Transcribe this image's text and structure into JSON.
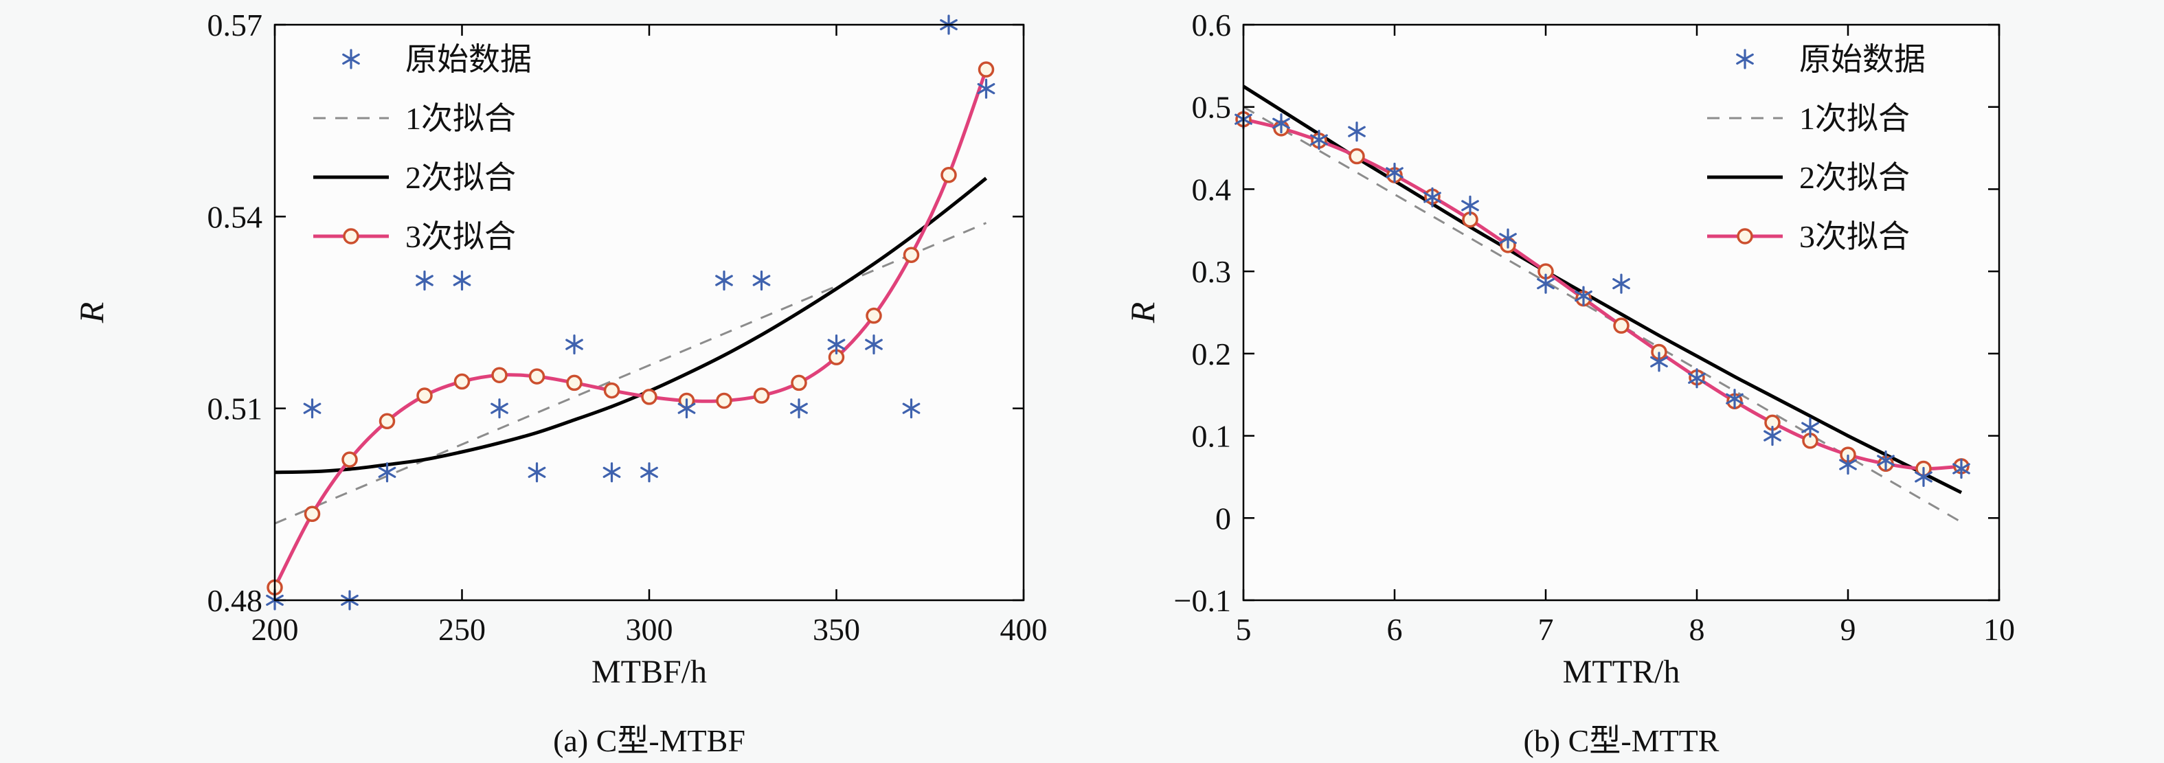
{
  "page": {
    "background": "#f7f8f8",
    "plot_fill": "#fcfcfc",
    "axis_color": "#000000",
    "text_color": "#111111"
  },
  "chart_data": [
    {
      "type": "line",
      "caption": "(a) C型-MTBF",
      "xlabel": "MTBF/h",
      "ylabel": "R",
      "xlim": [
        200,
        400
      ],
      "ylim": [
        0.48,
        0.57
      ],
      "xticks": [
        200,
        250,
        300,
        350,
        400
      ],
      "xtick_labels": [
        "200",
        "250",
        "300",
        "350",
        "400"
      ],
      "yticks": [
        0.48,
        0.51,
        0.54,
        0.57
      ],
      "ytick_labels": [
        "0.48",
        "0.51",
        "0.54",
        "0.57"
      ],
      "grid": false,
      "legend_position": "top-left",
      "series": [
        {
          "name": "原始数据",
          "kind": "scatter",
          "marker": "asterisk",
          "color": "#3f62ae",
          "x": [
            200,
            210,
            220,
            230,
            240,
            250,
            260,
            270,
            280,
            290,
            300,
            310,
            320,
            330,
            340,
            350,
            360,
            370,
            380,
            390
          ],
          "y": [
            0.48,
            0.51,
            0.48,
            0.5,
            0.53,
            0.53,
            0.51,
            0.5,
            0.52,
            0.5,
            0.5,
            0.51,
            0.53,
            0.53,
            0.51,
            0.52,
            0.52,
            0.51,
            0.57,
            0.56
          ]
        },
        {
          "name": "1次拟合",
          "kind": "line",
          "dash": true,
          "color": "#8c8c8c",
          "x": [
            200,
            390
          ],
          "y": [
            0.492,
            0.539
          ]
        },
        {
          "name": "2次拟合",
          "kind": "line",
          "dash": false,
          "color": "#000000",
          "x": [
            200,
            210,
            220,
            230,
            240,
            250,
            260,
            270,
            280,
            290,
            300,
            310,
            320,
            330,
            340,
            350,
            360,
            370,
            380,
            390
          ],
          "y": [
            0.5,
            0.5001,
            0.5005,
            0.5012,
            0.502,
            0.5032,
            0.5046,
            0.5062,
            0.5082,
            0.5103,
            0.5127,
            0.5154,
            0.5183,
            0.5215,
            0.525,
            0.5287,
            0.5326,
            0.5368,
            0.5413,
            0.546
          ]
        },
        {
          "name": "3次拟合",
          "kind": "line",
          "dash": false,
          "marker": "circle",
          "color": "#e0417a",
          "marker_color": "#cc4f2e",
          "marker_fill": "#fdf6e6",
          "x": [
            200,
            210,
            220,
            230,
            240,
            250,
            260,
            270,
            280,
            290,
            300,
            310,
            320,
            330,
            340,
            350,
            360,
            370,
            380,
            390
          ],
          "y": [
            0.482,
            0.4935,
            0.502,
            0.508,
            0.512,
            0.5142,
            0.5152,
            0.515,
            0.514,
            0.5128,
            0.5118,
            0.5112,
            0.5112,
            0.512,
            0.514,
            0.518,
            0.5245,
            0.534,
            0.5465,
            0.563
          ]
        }
      ]
    },
    {
      "type": "line",
      "caption": "(b) C型-MTTR",
      "xlabel": "MTTR/h",
      "ylabel": "R",
      "xlim": [
        5,
        10
      ],
      "ylim": [
        -0.1,
        0.6
      ],
      "xticks": [
        5,
        6,
        7,
        8,
        9,
        10
      ],
      "xtick_labels": [
        "5",
        "6",
        "7",
        "8",
        "9",
        "10"
      ],
      "yticks": [
        -0.1,
        0,
        0.1,
        0.2,
        0.3,
        0.4,
        0.5,
        0.6
      ],
      "ytick_labels": [
        "−0.1",
        "0",
        "0.1",
        "0.2",
        "0.3",
        "0.4",
        "0.5",
        "0.6"
      ],
      "grid": false,
      "legend_position": "top-right",
      "series": [
        {
          "name": "原始数据",
          "kind": "scatter",
          "marker": "asterisk",
          "color": "#3f62ae",
          "x": [
            5,
            5.25,
            5.5,
            5.75,
            6,
            6.25,
            6.5,
            6.75,
            7,
            7.25,
            7.5,
            7.75,
            8,
            8.25,
            8.5,
            8.75,
            9,
            9.25,
            9.5,
            9.75
          ],
          "y": [
            0.485,
            0.48,
            0.46,
            0.47,
            0.42,
            0.39,
            0.38,
            0.34,
            0.285,
            0.27,
            0.285,
            0.19,
            0.17,
            0.145,
            0.1,
            0.11,
            0.065,
            0.07,
            0.05,
            0.06
          ]
        },
        {
          "name": "1次拟合",
          "kind": "line",
          "dash": true,
          "color": "#8c8c8c",
          "x": [
            5,
            9.75
          ],
          "y": [
            0.5,
            -0.005
          ]
        },
        {
          "name": "2次拟合",
          "kind": "line",
          "dash": false,
          "color": "#000000",
          "x": [
            5,
            5.25,
            5.5,
            5.75,
            6,
            6.25,
            6.5,
            6.75,
            7,
            7.25,
            7.5,
            7.75,
            8,
            8.25,
            8.5,
            8.75,
            9,
            9.25,
            9.5,
            9.75
          ],
          "y": [
            0.525,
            0.496,
            0.467,
            0.438,
            0.41,
            0.382,
            0.354,
            0.327,
            0.3,
            0.274,
            0.248,
            0.222,
            0.197,
            0.172,
            0.148,
            0.124,
            0.1,
            0.077,
            0.054,
            0.031
          ]
        },
        {
          "name": "3次拟合",
          "kind": "line",
          "dash": false,
          "marker": "circle",
          "color": "#e0417a",
          "marker_color": "#cc4f2e",
          "marker_fill": "#fdf6e6",
          "x": [
            5,
            5.25,
            5.5,
            5.75,
            6,
            6.25,
            6.5,
            6.75,
            7,
            7.25,
            7.5,
            7.75,
            8,
            8.25,
            8.5,
            8.75,
            9,
            9.25,
            9.5,
            9.75
          ],
          "y": [
            0.485,
            0.474,
            0.459,
            0.44,
            0.417,
            0.391,
            0.363,
            0.332,
            0.3,
            0.267,
            0.234,
            0.202,
            0.171,
            0.142,
            0.116,
            0.094,
            0.077,
            0.066,
            0.06,
            0.063
          ]
        }
      ]
    }
  ]
}
